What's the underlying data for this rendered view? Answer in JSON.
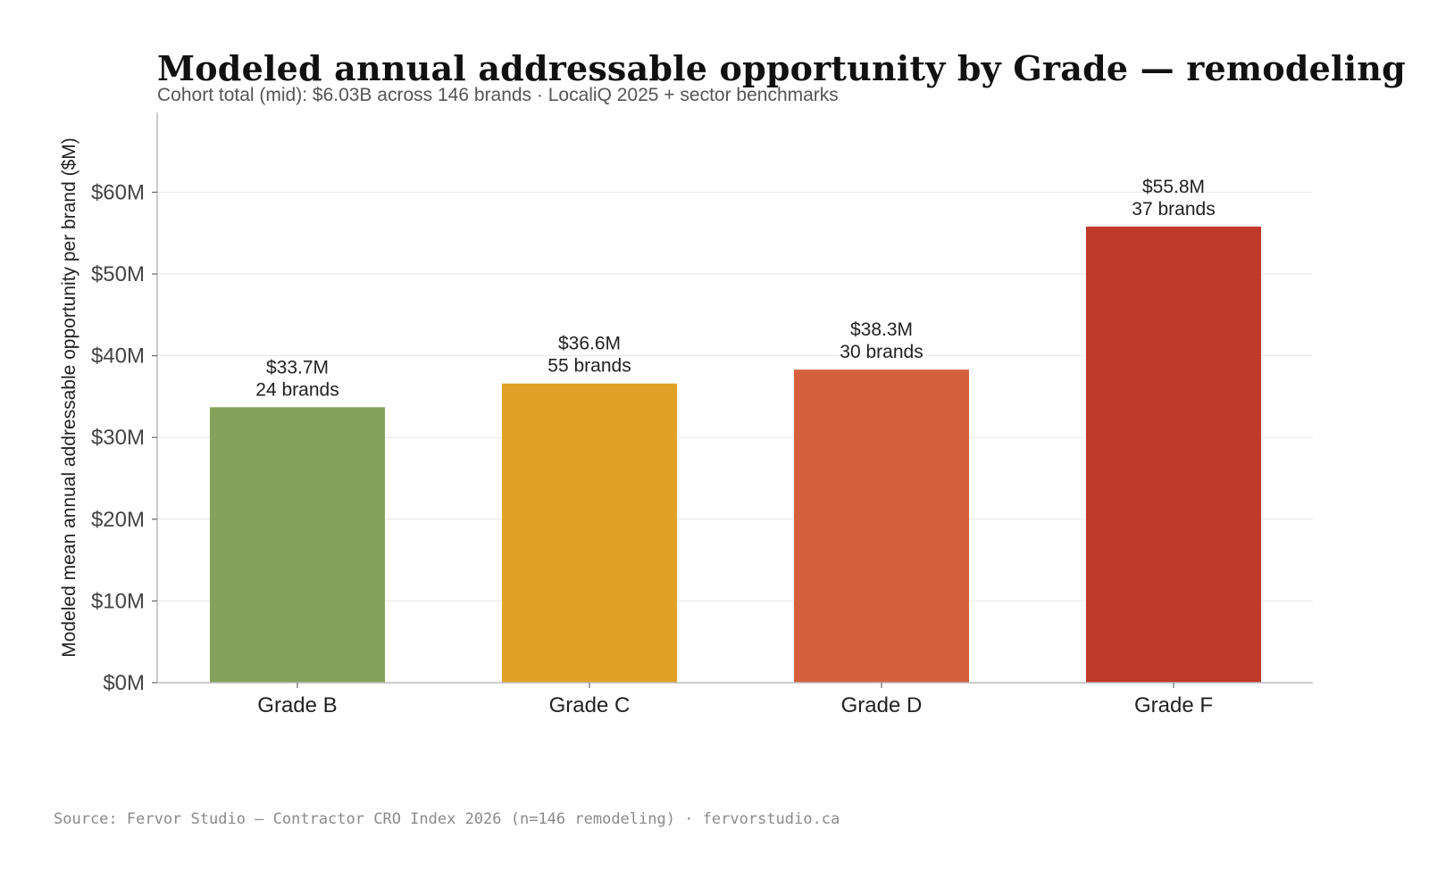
{
  "colors": {
    "grade_b": "#84a25b",
    "grade_c": "#e0a126",
    "grade_d": "#d6603d",
    "grade_f": "#c0392b",
    "grid": "#e6e6e6",
    "axis": "#bbbbbb",
    "text": "#222222",
    "tick_text": "#444444"
  },
  "chart_data": {
    "type": "bar",
    "title": "Modeled annual addressable opportunity by Grade — remodeling",
    "subtitle": "Cohort total (mid): $6.03B across 146 brands · LocaliQ 2025 + sector benchmarks",
    "xlabel": "",
    "ylabel": "Modeled mean annual addressable opportunity per brand ($M)",
    "ylim": [
      0,
      70
    ],
    "yticks": [
      {
        "value": 0,
        "label": "$0M"
      },
      {
        "value": 10,
        "label": "$10M"
      },
      {
        "value": 20,
        "label": "$20M"
      },
      {
        "value": 30,
        "label": "$30M"
      },
      {
        "value": 40,
        "label": "$40M"
      },
      {
        "value": 50,
        "label": "$50M"
      },
      {
        "value": 60,
        "label": "$60M"
      }
    ],
    "grid": true,
    "legend": false,
    "categories": [
      "Grade B",
      "Grade C",
      "Grade D",
      "Grade F"
    ],
    "values": [
      33.7,
      36.6,
      38.3,
      55.8
    ],
    "value_labels": [
      "$33.7M",
      "$36.6M",
      "$38.3M",
      "$55.8M"
    ],
    "count_labels": [
      "24 brands",
      "55 brands",
      "30 brands",
      "37 brands"
    ],
    "bar_colors": [
      "#84a25b",
      "#e0a126",
      "#d6603d",
      "#c0392b"
    ]
  },
  "footer": {
    "source": "Source: Fervor Studio — Contractor CRO Index 2026 (n=146 remodeling) · fervorstudio.ca"
  }
}
